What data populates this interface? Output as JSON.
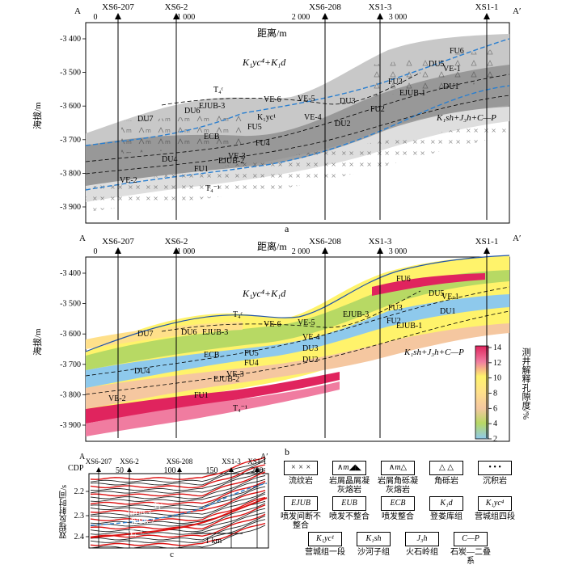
{
  "panel_a": {
    "corner_left": "A",
    "corner_right": "A′",
    "axis_title": "距离/m",
    "x_ticks": [
      "0",
      "1 000",
      "2 000",
      "3 000"
    ],
    "y_title": "海拔/m",
    "y_ticks": [
      "-3 400",
      "-3 500",
      "-3 600",
      "-3 700",
      "-3 800",
      "-3 900"
    ],
    "wells": [
      "XS6-207",
      "XS6-2",
      "XS6-208",
      "XS1-3",
      "XS1-1"
    ],
    "formation_top": "K₁yc⁴+K₁d",
    "formation_bottom": "K₁sh+J₃h+C—P",
    "units": [
      "DU7",
      "DU6",
      "DU5",
      "DU4",
      "DU3",
      "DU2",
      "DU1",
      "FU6",
      "FU5",
      "FU4",
      "FU3",
      "FU2",
      "FU1",
      "VE-6",
      "VE-5",
      "VE-4",
      "VE-3",
      "VE-2",
      "VE-1",
      "EJUB-3",
      "EJUB-2",
      "EJUB-1",
      "ECB",
      "K₁yc¹",
      "T₄ᶜ",
      "T₄⁻¹"
    ],
    "caption": "a"
  },
  "panel_b": {
    "corner_left": "A",
    "corner_right": "A′",
    "axis_title": "距离/m",
    "x_ticks": [
      "0",
      "1 000",
      "2 000",
      "3 000"
    ],
    "y_title": "海拔/m",
    "y_ticks": [
      "-3 400",
      "-3 500",
      "-3 600",
      "-3 700",
      "-3 800",
      "-3 900"
    ],
    "wells": [
      "XS6-207",
      "XS6-2",
      "XS6-208",
      "XS1-3",
      "XS1-1"
    ],
    "formation_top": "K₁yc⁴+K₁d",
    "formation_bottom": "K₁sh+J₃h+C—P",
    "colorbar_title": "测井解释孔隙度/%",
    "colorbar_ticks": [
      "14",
      "12",
      "10",
      "8",
      "6",
      "4",
      "2"
    ],
    "colorbar_colors": [
      "#e0245e",
      "#f07ca0",
      "#fff36b",
      "#ffe08a",
      "#f5c7a0",
      "#b7d964",
      "#8ec9ec"
    ],
    "caption": "b"
  },
  "panel_c": {
    "corner_left": "A",
    "corner_right": "A′",
    "cdp_label": "CDP",
    "cdp_ticks": [
      "50",
      "100",
      "150",
      "200"
    ],
    "y_title": "双程反射时间/s",
    "y_ticks": [
      "2.2",
      "2.3",
      "2.4"
    ],
    "wells": [
      "XS6-207",
      "XS6-2",
      "XS6-208",
      "XS1-3",
      "XS1-1"
    ],
    "scale": "1 km",
    "labels": [
      "T₄ᶜ",
      "EJUB-3",
      "EJUB-2",
      "T₄⁻¹"
    ],
    "caption": "c"
  },
  "legend": [
    {
      "name": "流纹岩",
      "symbol": "rhyolite"
    },
    {
      "name": "岩屑晶屑凝灰熔岩",
      "symbol": "tuff-lava"
    },
    {
      "name": "岩屑角砾凝灰熔岩",
      "symbol": "breccia-tuff-lava"
    },
    {
      "name": "角砾岩",
      "symbol": "breccia"
    },
    {
      "name": "沉积岩",
      "symbol": "sedimentary"
    },
    {
      "name": "喷发间断不整合",
      "symbol": "EJUB"
    },
    {
      "name": "喷发不整合",
      "symbol": "EUB"
    },
    {
      "name": "喷发整合",
      "symbol": "ECB"
    },
    {
      "name": "登娄库组",
      "symbol": "K₁d"
    },
    {
      "name": "营城组四段",
      "symbol": "K₁yc⁴"
    },
    {
      "name": "营城组一段",
      "symbol": "K₁yc¹"
    },
    {
      "name": "沙河子组",
      "symbol": "K₁sh"
    },
    {
      "name": "火石岭组",
      "symbol": "J₃h"
    },
    {
      "name": "石炭—二叠系",
      "symbol": "C—P"
    }
  ]
}
